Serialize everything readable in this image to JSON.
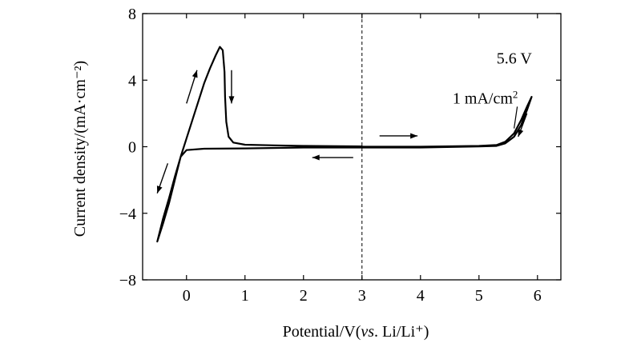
{
  "chart_data": {
    "type": "line",
    "title": "",
    "xlabel": "Potential/V(vs. Li/Li⁺)",
    "xlabel_parts": [
      "Potential/V(",
      "vs",
      ". Li/Li⁺)"
    ],
    "ylabel": "Current density/(mA·cm⁻²)",
    "xlim": [
      -0.75,
      6.4
    ],
    "ylim": [
      -8,
      8
    ],
    "xticks": [
      0,
      1,
      2,
      3,
      4,
      5,
      6
    ],
    "xtick_labels": [
      "0",
      "1",
      "2",
      "3",
      "4",
      "5",
      "6"
    ],
    "yticks": [
      -8,
      -4,
      0,
      4,
      8
    ],
    "ytick_labels": [
      "−8",
      "−4",
      "0",
      "4",
      "8"
    ],
    "grid": false,
    "reference_line": {
      "x": 3,
      "style": "dashed"
    },
    "series": [
      {
        "color": "#000000",
        "points": [
          [
            3.0,
            0.0
          ],
          [
            4.0,
            0.0
          ],
          [
            5.0,
            0.05
          ],
          [
            5.3,
            0.1
          ],
          [
            5.45,
            0.3
          ],
          [
            5.6,
            0.8
          ],
          [
            5.72,
            1.6
          ],
          [
            5.82,
            2.4
          ],
          [
            5.9,
            3.0
          ],
          [
            5.82,
            2.2
          ],
          [
            5.72,
            1.3
          ],
          [
            5.6,
            0.6
          ],
          [
            5.45,
            0.2
          ],
          [
            5.3,
            0.05
          ],
          [
            5.0,
            0.02
          ],
          [
            4.0,
            -0.05
          ],
          [
            3.0,
            -0.05
          ],
          [
            2.0,
            -0.05
          ],
          [
            1.0,
            -0.1
          ],
          [
            0.3,
            -0.12
          ],
          [
            0.0,
            -0.2
          ],
          [
            -0.1,
            -0.6
          ],
          [
            -0.2,
            -2.0
          ],
          [
            -0.3,
            -3.4
          ],
          [
            -0.4,
            -4.6
          ],
          [
            -0.5,
            -5.7
          ],
          [
            -0.4,
            -4.3
          ],
          [
            -0.3,
            -3.1
          ],
          [
            -0.2,
            -1.8
          ],
          [
            -0.1,
            -0.6
          ],
          [
            0.0,
            0.5
          ],
          [
            0.1,
            1.6
          ],
          [
            0.2,
            2.7
          ],
          [
            0.3,
            3.8
          ],
          [
            0.4,
            4.7
          ],
          [
            0.5,
            5.5
          ],
          [
            0.57,
            6.0
          ],
          [
            0.62,
            5.8
          ],
          [
            0.65,
            4.5
          ],
          [
            0.66,
            3.0
          ],
          [
            0.68,
            1.5
          ],
          [
            0.72,
            0.6
          ],
          [
            0.8,
            0.25
          ],
          [
            1.0,
            0.12
          ],
          [
            1.5,
            0.08
          ],
          [
            2.0,
            0.05
          ],
          [
            3.0,
            0.02
          ]
        ]
      }
    ],
    "annotations": [
      {
        "text": "5.6 V",
        "x": 5.3,
        "y": 5.0
      },
      {
        "text": "1 mA/cm²",
        "x": 4.55,
        "y": 2.6,
        "points_to": [
          5.6,
          1.1
        ]
      }
    ],
    "direction_arrows": [
      {
        "from": [
          3.3,
          0.65
        ],
        "to": [
          3.95,
          0.65
        ]
      },
      {
        "from": [
          2.85,
          -0.65
        ],
        "to": [
          2.15,
          -0.65
        ]
      },
      {
        "from": [
          5.82,
          2.0
        ],
        "to": [
          5.67,
          0.6
        ]
      },
      {
        "from": [
          -0.32,
          -1.0
        ],
        "to": [
          -0.5,
          -2.8
        ]
      },
      {
        "from": [
          0.0,
          2.6
        ],
        "to": [
          0.18,
          4.6
        ]
      },
      {
        "from": [
          0.77,
          4.6
        ],
        "to": [
          0.77,
          2.6
        ]
      }
    ]
  }
}
